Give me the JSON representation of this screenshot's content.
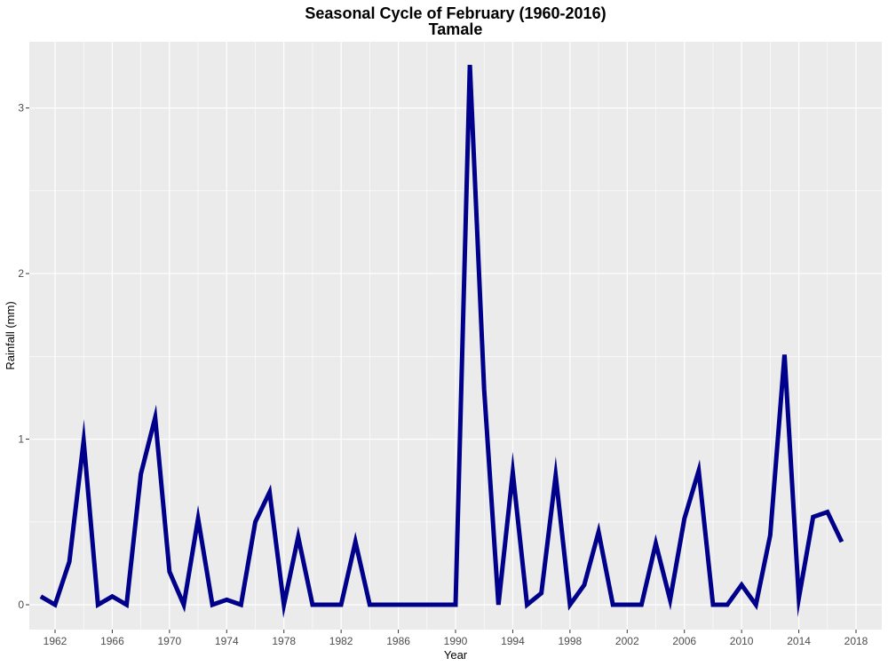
{
  "chart_data": {
    "type": "line",
    "title": "Seasonal Cycle of February (1960-2016)",
    "subtitle": "Tamale",
    "xlabel": "Year",
    "ylabel": "Rainfall (mm)",
    "xlim": [
      1960.2,
      2019.8
    ],
    "ylim": [
      -0.15,
      3.4
    ],
    "xticks": [
      1962,
      1966,
      1970,
      1974,
      1978,
      1982,
      1986,
      1990,
      1994,
      1998,
      2002,
      2006,
      2010,
      2014,
      2018
    ],
    "yticks": [
      0,
      1,
      2,
      3
    ],
    "grid": true,
    "legend": "none",
    "colors": {
      "line": "#00008B",
      "panel": "#EBEBEB",
      "grid": "#FFFFFF"
    },
    "x": [
      1961,
      1962,
      1963,
      1964,
      1965,
      1966,
      1967,
      1968,
      1969,
      1970,
      1971,
      1972,
      1973,
      1974,
      1975,
      1976,
      1977,
      1978,
      1979,
      1980,
      1981,
      1982,
      1983,
      1984,
      1985,
      1986,
      1987,
      1988,
      1989,
      1990,
      1991,
      1992,
      1993,
      1994,
      1995,
      1996,
      1997,
      1998,
      1999,
      2000,
      2001,
      2002,
      2003,
      2004,
      2005,
      2006,
      2007,
      2008,
      2009,
      2010,
      2011,
      2012,
      2013,
      2014,
      2015,
      2016,
      2017
    ],
    "values": [
      0.05,
      0,
      0.26,
      0.99,
      0,
      0.05,
      0,
      0.79,
      1.13,
      0.2,
      0,
      0.52,
      0,
      0.03,
      0,
      0.5,
      0.68,
      0,
      0.41,
      0,
      0,
      0,
      0.38,
      0,
      0,
      0,
      0,
      0,
      0,
      0,
      3.26,
      1.3,
      0,
      0.8,
      0,
      0.07,
      0.78,
      0,
      0.12,
      0.44,
      0,
      0,
      0,
      0.37,
      0.03,
      0.52,
      0.81,
      0,
      0,
      0.12,
      0,
      0.42,
      1.51,
      0.04,
      0.53,
      0.56,
      0.38
    ]
  }
}
